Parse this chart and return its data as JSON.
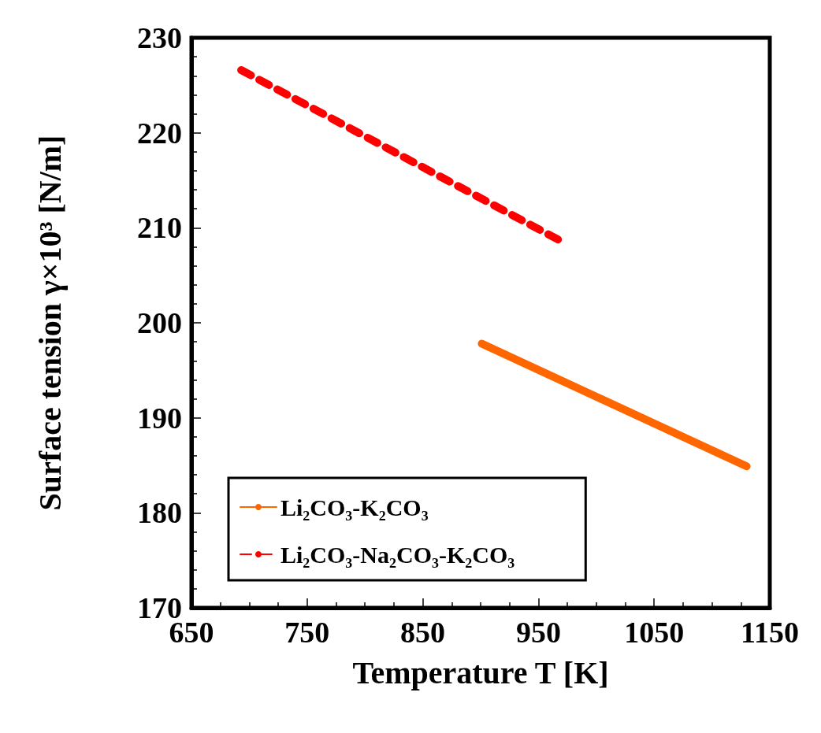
{
  "chart_data": {
    "type": "line",
    "xlabel": "Temperature T [K]",
    "ylabel": "Surface tension γ×10³ [N/m]",
    "xlim": [
      650,
      1150
    ],
    "xticks": [
      650,
      {
        "value": 675,
        "label": null
      },
      {
        "value": 700,
        "label": null
      },
      {
        "value": 725,
        "label": null
      },
      750,
      {
        "value": 775,
        "label": null
      },
      {
        "value": 800,
        "label": null
      },
      {
        "value": 825,
        "label": null
      },
      850,
      {
        "value": 875,
        "label": null
      },
      {
        "value": 900,
        "label": null
      },
      {
        "value": 925,
        "label": null
      },
      950,
      {
        "value": 975,
        "label": null
      },
      {
        "value": 1000,
        "label": null
      },
      {
        "value": 1025,
        "label": null
      },
      1050,
      {
        "value": 1075,
        "label": null
      },
      {
        "value": 1100,
        "label": null
      },
      {
        "value": 1125,
        "label": null
      },
      1150
    ],
    "ylim": [
      170,
      230
    ],
    "yticks": [
      170,
      {
        "value": 172,
        "label": null
      },
      {
        "value": 174,
        "label": null
      },
      {
        "value": 176,
        "label": null
      },
      {
        "value": 178,
        "label": null
      },
      180,
      {
        "value": 182,
        "label": null
      },
      {
        "value": 184,
        "label": null
      },
      {
        "value": 186,
        "label": null
      },
      {
        "value": 188,
        "label": null
      },
      190,
      {
        "value": 192,
        "label": null
      },
      {
        "value": 194,
        "label": null
      },
      {
        "value": 196,
        "label": null
      },
      {
        "value": 198,
        "label": null
      },
      200,
      {
        "value": 202,
        "label": null
      },
      {
        "value": 204,
        "label": null
      },
      {
        "value": 206,
        "label": null
      },
      {
        "value": 208,
        "label": null
      },
      210,
      {
        "value": 212,
        "label": null
      },
      {
        "value": 214,
        "label": null
      },
      {
        "value": 216,
        "label": null
      },
      {
        "value": 218,
        "label": null
      },
      220,
      {
        "value": 222,
        "label": null
      },
      {
        "value": 224,
        "label": null
      },
      {
        "value": 226,
        "label": null
      },
      {
        "value": 228,
        "label": null
      },
      230
    ],
    "grid": false,
    "legend": "bottom left",
    "series": [
      {
        "name": "Li₂CO₃-K₂CO₃",
        "color": "#ff6600",
        "line_style": "solid",
        "x": [
          901,
          1130
        ],
        "values": [
          197.8,
          184.9
        ]
      },
      {
        "name": "Li₂CO₃-Na₂CO₃-K₂CO₃",
        "color": "#ff0000",
        "line_style": "dashed",
        "x": [
          693,
          971
        ],
        "values": [
          226.6,
          208.5
        ]
      }
    ]
  }
}
